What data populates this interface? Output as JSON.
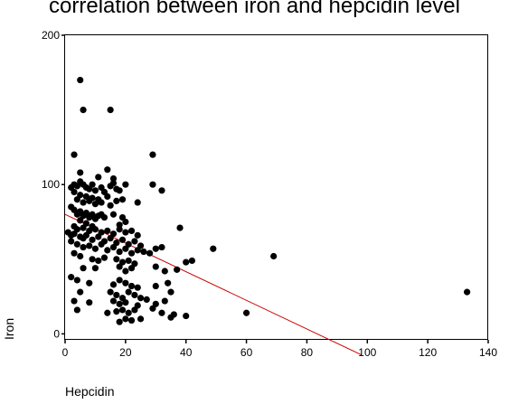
{
  "chart_data": {
    "type": "scatter",
    "title": "correlation between iron and hepcidin level",
    "xlabel": "Hepcidin",
    "ylabel": "Iron",
    "xlim": [
      0,
      140
    ],
    "ylim": [
      -4,
      200
    ],
    "x_ticks": [
      0,
      20,
      40,
      60,
      80,
      100,
      120,
      140
    ],
    "y_ticks": [
      0,
      100,
      200
    ],
    "grid": false,
    "legend": "none",
    "marker_color": "#000000",
    "fit_line_color": "#cc0000",
    "series": [
      {
        "points": [
          [
            5,
            170
          ],
          [
            6,
            150
          ],
          [
            15,
            150
          ],
          [
            3,
            120
          ],
          [
            29,
            120
          ],
          [
            14,
            110
          ],
          [
            5,
            108
          ],
          [
            16,
            104
          ],
          [
            11,
            105
          ],
          [
            29,
            100
          ],
          [
            32,
            96
          ],
          [
            2,
            98
          ],
          [
            3,
            100
          ],
          [
            4,
            99
          ],
          [
            5,
            102
          ],
          [
            6,
            100
          ],
          [
            7,
            98
          ],
          [
            8,
            97
          ],
          [
            9,
            100
          ],
          [
            10,
            96
          ],
          [
            12,
            98
          ],
          [
            13,
            95
          ],
          [
            15,
            99
          ],
          [
            16,
            101
          ],
          [
            17,
            97
          ],
          [
            18,
            96
          ],
          [
            20,
            100
          ],
          [
            3,
            95
          ],
          [
            4,
            90
          ],
          [
            5,
            93
          ],
          [
            6,
            88
          ],
          [
            7,
            92
          ],
          [
            8,
            89
          ],
          [
            9,
            91
          ],
          [
            10,
            87
          ],
          [
            11,
            90
          ],
          [
            12,
            88
          ],
          [
            14,
            92
          ],
          [
            15,
            86
          ],
          [
            17,
            89
          ],
          [
            19,
            90
          ],
          [
            24,
            88
          ],
          [
            2,
            85
          ],
          [
            3,
            83
          ],
          [
            4,
            80
          ],
          [
            5,
            82
          ],
          [
            6,
            79
          ],
          [
            7,
            81
          ],
          [
            8,
            78
          ],
          [
            9,
            80
          ],
          [
            10,
            77
          ],
          [
            11,
            79
          ],
          [
            12,
            80
          ],
          [
            13,
            78
          ],
          [
            16,
            80
          ],
          [
            19,
            78
          ],
          [
            20,
            75
          ],
          [
            5,
            76
          ],
          [
            7,
            74
          ],
          [
            9,
            72
          ],
          [
            18,
            73
          ],
          [
            3,
            72
          ],
          [
            4,
            70
          ],
          [
            6,
            71
          ],
          [
            8,
            69
          ],
          [
            10,
            70
          ],
          [
            12,
            68
          ],
          [
            14,
            69
          ],
          [
            16,
            67
          ],
          [
            18,
            70
          ],
          [
            20,
            68
          ],
          [
            22,
            69
          ],
          [
            24,
            66
          ],
          [
            38,
            71
          ],
          [
            1,
            68
          ],
          [
            2,
            66
          ],
          [
            3,
            67
          ],
          [
            5,
            65
          ],
          [
            6,
            64
          ],
          [
            7,
            66
          ],
          [
            9,
            63
          ],
          [
            11,
            65
          ],
          [
            13,
            62
          ],
          [
            15,
            64
          ],
          [
            17,
            61
          ],
          [
            19,
            63
          ],
          [
            21,
            60
          ],
          [
            23,
            62
          ],
          [
            25,
            59
          ],
          [
            2,
            62
          ],
          [
            4,
            60
          ],
          [
            6,
            58
          ],
          [
            8,
            59
          ],
          [
            10,
            57
          ],
          [
            12,
            60
          ],
          [
            14,
            56
          ],
          [
            16,
            58
          ],
          [
            18,
            55
          ],
          [
            20,
            57
          ],
          [
            22,
            54
          ],
          [
            24,
            56
          ],
          [
            26,
            55
          ],
          [
            28,
            54
          ],
          [
            30,
            57
          ],
          [
            32,
            58
          ],
          [
            49,
            57
          ],
          [
            69,
            52
          ],
          [
            3,
            54
          ],
          [
            5,
            52
          ],
          [
            9,
            50
          ],
          [
            11,
            49
          ],
          [
            13,
            51
          ],
          [
            17,
            50
          ],
          [
            19,
            48
          ],
          [
            21,
            49
          ],
          [
            23,
            47
          ],
          [
            40,
            48
          ],
          [
            42,
            49
          ],
          [
            6,
            44
          ],
          [
            10,
            44
          ],
          [
            18,
            45
          ],
          [
            20,
            42
          ],
          [
            22,
            44
          ],
          [
            30,
            45
          ],
          [
            33,
            42
          ],
          [
            37,
            43
          ],
          [
            2,
            38
          ],
          [
            4,
            36
          ],
          [
            8,
            34
          ],
          [
            16,
            33
          ],
          [
            18,
            36
          ],
          [
            20,
            34
          ],
          [
            22,
            32
          ],
          [
            24,
            31
          ],
          [
            30,
            32
          ],
          [
            34,
            34
          ],
          [
            5,
            28
          ],
          [
            15,
            28
          ],
          [
            17,
            26
          ],
          [
            19,
            24
          ],
          [
            21,
            28
          ],
          [
            23,
            26
          ],
          [
            25,
            24
          ],
          [
            27,
            23
          ],
          [
            35,
            28
          ],
          [
            133,
            28
          ],
          [
            3,
            22
          ],
          [
            8,
            21
          ],
          [
            16,
            22
          ],
          [
            18,
            20
          ],
          [
            20,
            21
          ],
          [
            24,
            19
          ],
          [
            30,
            20
          ],
          [
            33,
            22
          ],
          [
            4,
            16
          ],
          [
            14,
            14
          ],
          [
            17,
            15
          ],
          [
            19,
            16
          ],
          [
            21,
            14
          ],
          [
            23,
            16
          ],
          [
            29,
            17
          ],
          [
            32,
            14
          ],
          [
            36,
            13
          ],
          [
            40,
            12
          ],
          [
            60,
            14
          ],
          [
            20,
            10
          ],
          [
            22,
            9
          ],
          [
            25,
            10
          ],
          [
            35,
            11
          ],
          [
            18,
            8
          ]
        ]
      }
    ],
    "fit_line": {
      "x": [
        0,
        98
      ],
      "y": [
        80,
        -14
      ]
    }
  }
}
